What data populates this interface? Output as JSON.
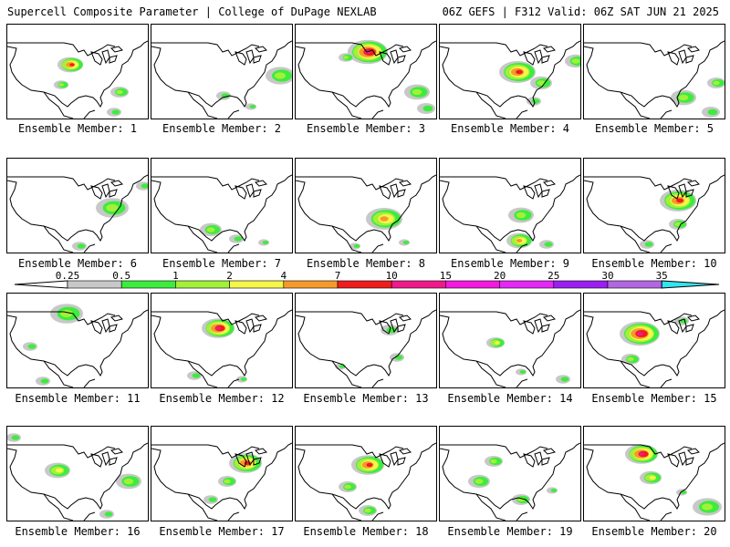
{
  "header": {
    "left": "Supercell Composite Parameter | College of DuPage NEXLAB",
    "right": "06Z GEFS | F312 Valid: 06Z SAT JUN 21 2025"
  },
  "colorbar": {
    "ticks": [
      "0.25",
      "0.5",
      "1",
      "2",
      "4",
      "7",
      "10",
      "15",
      "20",
      "25",
      "30",
      "35"
    ],
    "colors": [
      "#c8c8c8",
      "#3dec3d",
      "#a2f03a",
      "#f5f54a",
      "#f59a2a",
      "#ee1c1c",
      "#ef1a8a",
      "#f21adf",
      "#e428f6",
      "#9a1ff0",
      "#b068e0",
      "#32e4f0"
    ]
  },
  "members": [
    {
      "label": "Ensemble Member: 1"
    },
    {
      "label": "Ensemble Member: 2"
    },
    {
      "label": "Ensemble Member: 3"
    },
    {
      "label": "Ensemble Member: 4"
    },
    {
      "label": "Ensemble Member: 5"
    },
    {
      "label": "Ensemble Member: 6"
    },
    {
      "label": "Ensemble Member: 7"
    },
    {
      "label": "Ensemble Member: 8"
    },
    {
      "label": "Ensemble Member: 9"
    },
    {
      "label": "Ensemble Member: 10"
    },
    {
      "label": "Ensemble Member: 11"
    },
    {
      "label": "Ensemble Member: 12"
    },
    {
      "label": "Ensemble Member: 13"
    },
    {
      "label": "Ensemble Member: 14"
    },
    {
      "label": "Ensemble Member: 15"
    },
    {
      "label": "Ensemble Member: 16"
    },
    {
      "label": "Ensemble Member: 17"
    },
    {
      "label": "Ensemble Member: 18"
    },
    {
      "label": "Ensemble Member: 19"
    },
    {
      "label": "Ensemble Member: 20"
    }
  ]
}
